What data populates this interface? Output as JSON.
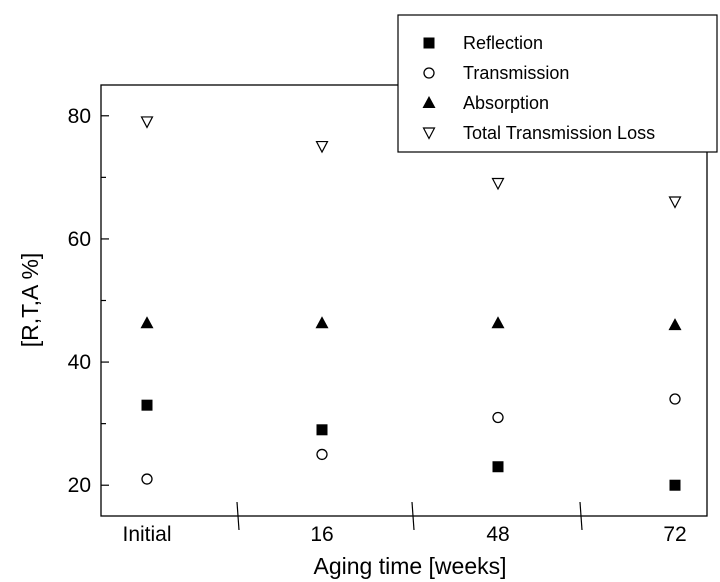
{
  "chart_data": {
    "type": "scatter",
    "title": "",
    "xlabel": "Aging time [weeks]",
    "ylabel": "[R,T,A %]",
    "categories": [
      "Initial",
      "16",
      "48",
      "72"
    ],
    "ylim": [
      15,
      85
    ],
    "y_ticks": [
      20,
      40,
      60,
      80
    ],
    "grid": false,
    "legend_position": "top-right",
    "series": [
      {
        "name": "Reflection",
        "marker": "filled-square",
        "color": "#000000",
        "values": [
          33,
          29,
          23,
          20
        ]
      },
      {
        "name": "Transmission",
        "marker": "open-circle",
        "color": "#000000",
        "values": [
          21,
          25,
          31,
          34
        ]
      },
      {
        "name": "Absorption",
        "marker": "filled-triangle-up",
        "color": "#000000",
        "values": [
          46.3,
          46.3,
          46.3,
          46
        ]
      },
      {
        "name": "Total Transmission Loss",
        "marker": "open-triangle-down",
        "color": "#000000",
        "values": [
          79,
          75,
          69,
          66
        ]
      }
    ]
  }
}
